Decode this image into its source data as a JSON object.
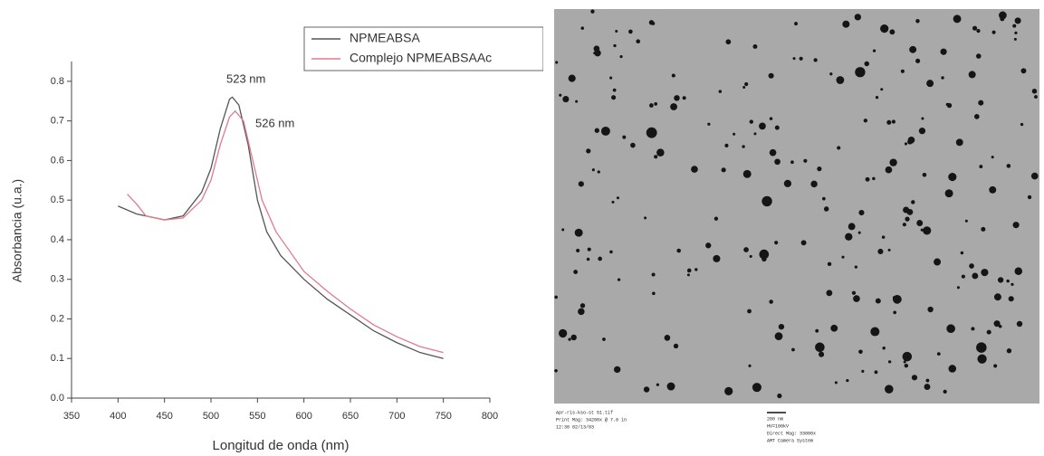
{
  "chart_data": {
    "type": "line",
    "x_label": "Longitud de onda (nm)",
    "y_label": "Absorbancia (u.a.)",
    "xlim": [
      350,
      800
    ],
    "xticks": [
      350,
      400,
      450,
      500,
      550,
      600,
      650,
      700,
      750,
      800
    ],
    "ylim": [
      0,
      0.85
    ],
    "yticks": [
      {
        "value": 0,
        "label": "0.0"
      },
      0.1,
      0.2,
      0.3,
      0.4,
      0.5,
      0.6,
      0.7,
      0.8
    ],
    "legend": "upper right",
    "annotations": [
      "523 nm",
      "526 nm"
    ],
    "series": [
      {
        "name": "NPMEABSA",
        "color": "#555555",
        "x": [
          400,
          420,
          450,
          470,
          490,
          500,
          510,
          520,
          523,
          530,
          540,
          550,
          560,
          575,
          600,
          625,
          650,
          675,
          700,
          725,
          750
        ],
        "values": [
          0.485,
          0.465,
          0.45,
          0.46,
          0.52,
          0.58,
          0.68,
          0.755,
          0.76,
          0.74,
          0.64,
          0.5,
          0.42,
          0.36,
          0.3,
          0.25,
          0.21,
          0.17,
          0.14,
          0.115,
          0.1
        ]
      },
      {
        "name": "Complejo NPMEABSAAc",
        "color": "#e07a8e",
        "x": [
          410,
          420,
          430,
          450,
          470,
          490,
          500,
          510,
          520,
          526,
          535,
          545,
          555,
          570,
          600,
          625,
          650,
          675,
          700,
          725,
          750
        ],
        "values": [
          0.515,
          0.49,
          0.46,
          0.45,
          0.455,
          0.5,
          0.55,
          0.64,
          0.71,
          0.725,
          0.7,
          0.6,
          0.5,
          0.42,
          0.32,
          0.27,
          0.225,
          0.185,
          0.155,
          0.13,
          0.115
        ]
      }
    ]
  },
  "image_caption": {
    "left": [
      "Apr-ris-kso-st 51.tif",
      "Print Mag: 34200x @ 7.0 in",
      "12:30 02/13/03"
    ],
    "scale": "200 nm",
    "right": [
      "HV=100kV",
      "Direct Mag: 33000x",
      "AMT Camera System"
    ]
  }
}
